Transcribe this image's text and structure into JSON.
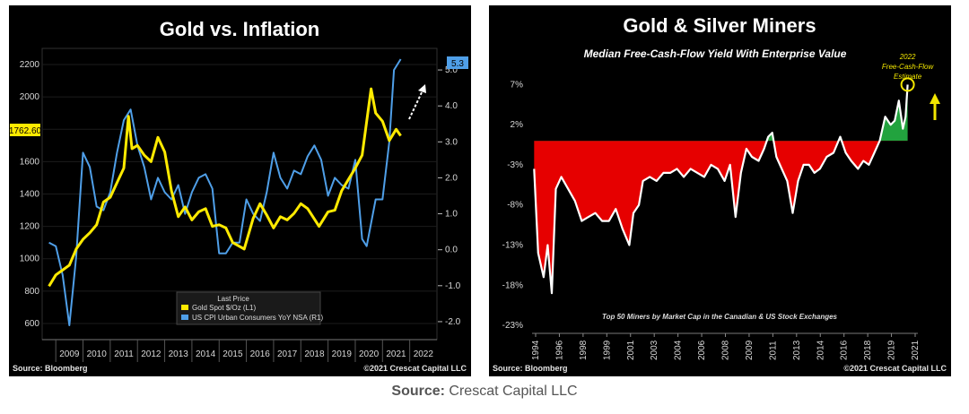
{
  "page": {
    "source_label": "Source:",
    "source_value": "Crescat Capital LLC"
  },
  "chart_data": [
    {
      "type": "line",
      "title": "Gold vs. Inflation",
      "left_axis": {
        "ticks": [
          600,
          800,
          1000,
          1200,
          1400,
          1600,
          1800,
          2000,
          2200
        ],
        "range": [
          500,
          2300
        ]
      },
      "right_axis": {
        "ticks": [
          -2.0,
          -1.0,
          0.0,
          1.0,
          2.0,
          3.0,
          4.0,
          5.0
        ],
        "range": [
          -2.5,
          5.6
        ]
      },
      "x_ticks": [
        "2009",
        "2010",
        "2011",
        "2012",
        "2013",
        "2014",
        "2015",
        "2016",
        "2017",
        "2018",
        "2019",
        "2020",
        "2021",
        "2022"
      ],
      "last_value_left": "1762.60",
      "last_value_right": "5.3",
      "legend": {
        "title": "Last Price",
        "items": [
          {
            "name": "Gold Spot   $/Oz  (L1)",
            "color": "#ffea00"
          },
          {
            "name": "US CPI Urban Consumers YoY NSA  (R1)",
            "color": "#4f9fe8"
          }
        ]
      },
      "series": [
        {
          "name": "Gold Spot   $/Oz  (L1)",
          "axis": "left",
          "color": "#ffea00",
          "x": [
            2008.75,
            2009.0,
            2009.25,
            2009.5,
            2009.75,
            2010.0,
            2010.25,
            2010.5,
            2010.75,
            2011.0,
            2011.25,
            2011.5,
            2011.67,
            2011.8,
            2012.0,
            2012.25,
            2012.5,
            2012.75,
            2013.0,
            2013.25,
            2013.5,
            2013.75,
            2014.0,
            2014.25,
            2014.5,
            2014.75,
            2015.0,
            2015.25,
            2015.5,
            2015.92,
            2016.25,
            2016.5,
            2016.75,
            2017.0,
            2017.25,
            2017.5,
            2017.75,
            2018.0,
            2018.25,
            2018.67,
            2019.0,
            2019.25,
            2019.5,
            2019.75,
            2020.0,
            2020.25,
            2020.58,
            2020.75,
            2021.0,
            2021.25,
            2021.5,
            2021.67
          ],
          "values": [
            830,
            900,
            930,
            960,
            1060,
            1120,
            1160,
            1210,
            1350,
            1380,
            1470,
            1560,
            1880,
            1680,
            1700,
            1640,
            1600,
            1750,
            1660,
            1420,
            1260,
            1320,
            1240,
            1290,
            1310,
            1200,
            1210,
            1190,
            1100,
            1060,
            1250,
            1340,
            1270,
            1190,
            1260,
            1240,
            1280,
            1340,
            1310,
            1200,
            1290,
            1300,
            1420,
            1490,
            1560,
            1640,
            2050,
            1900,
            1850,
            1730,
            1800,
            1760
          ]
        },
        {
          "name": "US CPI Urban Consumers YoY NSA  (R1)",
          "axis": "right",
          "color": "#4f9fe8",
          "x": [
            2008.75,
            2009.0,
            2009.25,
            2009.5,
            2009.75,
            2010.0,
            2010.25,
            2010.5,
            2010.75,
            2011.0,
            2011.25,
            2011.5,
            2011.75,
            2012.0,
            2012.25,
            2012.5,
            2012.75,
            2013.0,
            2013.25,
            2013.5,
            2013.75,
            2014.0,
            2014.25,
            2014.5,
            2014.75,
            2015.0,
            2015.25,
            2015.5,
            2015.75,
            2016.0,
            2016.25,
            2016.5,
            2016.75,
            2017.0,
            2017.25,
            2017.5,
            2017.75,
            2018.0,
            2018.25,
            2018.5,
            2018.75,
            2019.0,
            2019.25,
            2019.5,
            2019.75,
            2020.0,
            2020.25,
            2020.42,
            2020.75,
            2021.0,
            2021.25,
            2021.42,
            2021.67
          ],
          "values": [
            0.2,
            0.1,
            -0.7,
            -2.1,
            -0.2,
            2.7,
            2.3,
            1.2,
            1.1,
            1.6,
            2.7,
            3.6,
            3.9,
            2.9,
            2.3,
            1.4,
            2.0,
            1.6,
            1.4,
            1.8,
            1.0,
            1.6,
            2.0,
            2.1,
            1.7,
            -0.1,
            -0.1,
            0.2,
            0.2,
            1.4,
            1.0,
            0.8,
            1.6,
            2.7,
            2.0,
            1.7,
            2.2,
            2.1,
            2.6,
            2.9,
            2.5,
            1.5,
            2.0,
            1.8,
            1.7,
            2.5,
            0.3,
            0.1,
            1.4,
            1.4,
            3.0,
            5.0,
            5.3
          ]
        }
      ],
      "footer_left": "Source: Bloomberg",
      "footer_right": "©2021 Crescat Capital LLC"
    },
    {
      "type": "area",
      "title": "Gold & Silver Miners",
      "subtitle": "Median Free-Cash-Flow Yield With Enterprise Value",
      "y_ticks": [
        "7%",
        "2%",
        "-3%",
        "-8%",
        "-13%",
        "-18%",
        "-23%"
      ],
      "y_tick_values": [
        7,
        2,
        -3,
        -8,
        -13,
        -18,
        -23
      ],
      "ylim": [
        -24,
        9.5
      ],
      "baseline": 0,
      "x_ticks": [
        "1994",
        "1996",
        "1998",
        "1999",
        "2001",
        "2003",
        "2004",
        "2006",
        "2008",
        "2009",
        "2011",
        "2013",
        "2014",
        "2016",
        "2018",
        "2019",
        "2021"
      ],
      "annotation": "2022\nFree-Cash-Flow\nEstimate",
      "annotation_value": 7,
      "positive_color": "#22a33e",
      "negative_color": "#e60000",
      "x": [
        1994.0,
        1994.3,
        1994.7,
        1995.0,
        1995.3,
        1995.6,
        1996.0,
        1996.5,
        1997.0,
        1997.5,
        1998.0,
        1998.5,
        1999.0,
        1999.5,
        2000.0,
        2000.5,
        2001.0,
        2001.3,
        2001.7,
        2002.0,
        2002.5,
        2003.0,
        2003.5,
        2004.0,
        2004.5,
        2005.0,
        2005.5,
        2006.0,
        2006.5,
        2007.0,
        2007.5,
        2008.0,
        2008.4,
        2008.8,
        2009.2,
        2009.6,
        2010.0,
        2010.5,
        2010.9,
        2011.2,
        2011.5,
        2011.8,
        2012.2,
        2012.6,
        2013.0,
        2013.4,
        2013.8,
        2014.2,
        2014.6,
        2015.0,
        2015.5,
        2016.0,
        2016.5,
        2016.9,
        2017.3,
        2017.8,
        2018.2,
        2018.6,
        2019.0,
        2019.4,
        2019.8,
        2020.2,
        2020.5,
        2020.8,
        2021.1,
        2021.3,
        2021.45
      ],
      "values": [
        -3.5,
        -14,
        -17,
        -13,
        -19,
        -6,
        -4.5,
        -6,
        -7.5,
        -10,
        -9.5,
        -9,
        -10,
        -10,
        -8.5,
        -11,
        -13,
        -9,
        -8,
        -5,
        -4.5,
        -5,
        -4,
        -4,
        -3.5,
        -4.5,
        -3.5,
        -4,
        -4.5,
        -3,
        -3.5,
        -5,
        -3,
        -9.5,
        -4,
        -1,
        -2,
        -2.5,
        -1,
        0.5,
        1,
        -2,
        -3.5,
        -5,
        -9,
        -5,
        -3,
        -3,
        -4,
        -3.5,
        -2,
        -1.5,
        0.5,
        -1.5,
        -2.5,
        -3.5,
        -2.5,
        -3,
        -1.5,
        0,
        3,
        2,
        2.5,
        5,
        1.5,
        3,
        7
      ],
      "inner_note": "Top 50 Miners by Market Cap in the Canadian & US Stock Exchanges",
      "footer_left": "Source: Bloomberg",
      "footer_right": "©2021 Crescat Capital LLC"
    }
  ]
}
